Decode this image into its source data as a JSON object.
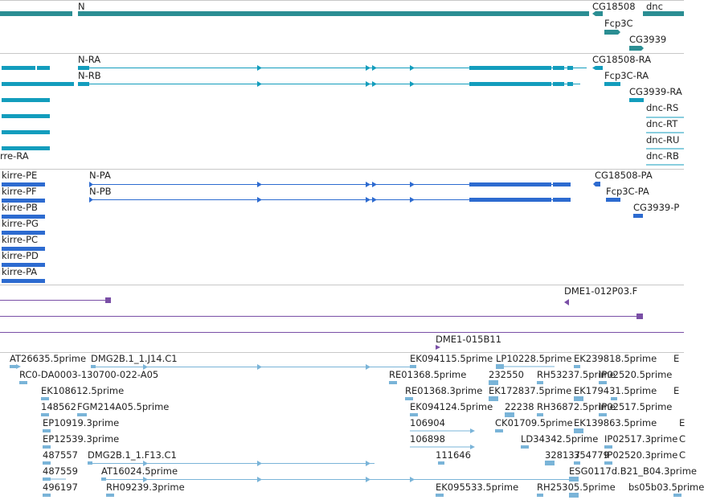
{
  "colors": {
    "gene": "#2b8e93",
    "transcript": "#139dbd",
    "protein": "#2d6bd0",
    "clone": "#7a4fa6",
    "est": "#7ab4d8"
  },
  "tracks": {
    "genes": {
      "labels": [
        "N",
        "CG18508",
        "dnc",
        "Fcp3C",
        "CG3939"
      ]
    },
    "transcripts": {
      "labels": [
        "N-RA",
        "N-RB",
        "rre-RA",
        "CG18508-RA",
        "Fcp3C-RA",
        "CG3939-RA",
        "dnc-RS",
        "dnc-RT",
        "dnc-RU",
        "dnc-RB"
      ]
    },
    "proteins": {
      "labels": [
        "kirre-PE",
        "kirre-PF",
        "kirre-PB",
        "kirre-PG",
        "kirre-PC",
        "kirre-PD",
        "kirre-PA",
        "N-PA",
        "N-PB",
        "CG18508-PA",
        "Fcp3C-PA",
        "CG3939-P"
      ]
    },
    "clones": {
      "labels": [
        "DME1-012P03.F",
        "DME1-015B11"
      ]
    },
    "ests": {
      "labels": [
        "AT26635.5prime",
        "DMG2B.1_1.J14.C1",
        "EK094115.5prime",
        "LP10228.5prime",
        "EK239818.5prime",
        "E",
        "RC0-DA0003-130700-022-A05",
        "RE01368.5prime",
        "232550",
        "RH53237.5prime",
        "IP02520.5prime",
        "EK108612.5prime",
        "RE01368.3prime",
        "EK172837.5prime",
        "EK179431.5prime",
        "E",
        "148562",
        "FGM214A05.5prime",
        "EK094124.5prime",
        "22238",
        "RH36872.5prime",
        "IP02517.5prime",
        "EP10919.3prime",
        "106904",
        "CK01709.5prime",
        "EK139863.5prime",
        "E",
        "EP12539.3prime",
        "106898",
        "LD34342.5prime",
        "IP02517.3prime",
        "C",
        "487557",
        "DMG2B.1_1.F13.C1",
        "111646",
        "328137",
        "354779",
        "IP02520.3prime",
        "C",
        "487559",
        "AT16024.5prime",
        "ESG0117d.B21_B04.3prime",
        "496197",
        "RH09239.3prime",
        "EK095533.5prime",
        "RH25305.5prime",
        "bs05b03.5prime"
      ]
    }
  }
}
